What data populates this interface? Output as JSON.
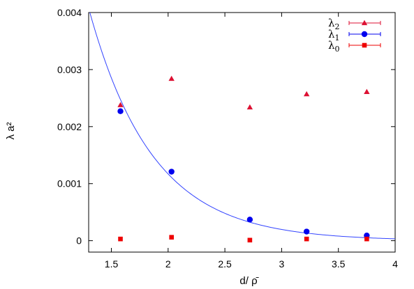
{
  "chart_data": {
    "type": "scatter",
    "title": "",
    "xlabel": "d/ ρ̄",
    "ylabel": "λ a²",
    "xlim": [
      1.3,
      4.0
    ],
    "ylim": [
      -0.0002,
      0.004
    ],
    "xticks": [
      1.5,
      2,
      2.5,
      3,
      3.5,
      4
    ],
    "xtick_labels": [
      "1.5",
      "2",
      "2.5",
      "3",
      "3.5",
      "4"
    ],
    "yticks": [
      0,
      0.001,
      0.002,
      0.003,
      0.004
    ],
    "ytick_labels": [
      "0",
      "0.001",
      "0.002",
      "0.003",
      "0.004"
    ],
    "grid": false,
    "legend_position": "top-right",
    "series": [
      {
        "name": "λ2",
        "marker": "triangle",
        "color": "#dd1133",
        "x": [
          1.58,
          2.03,
          2.72,
          3.22,
          3.75
        ],
        "y": [
          0.00238,
          0.00284,
          0.00234,
          0.00257,
          0.00261
        ]
      },
      {
        "name": "λ1",
        "marker": "circle",
        "color": "#0000ee",
        "x": [
          1.58,
          2.03,
          2.72,
          3.22,
          3.75
        ],
        "y": [
          0.00227,
          0.00121,
          0.00037,
          0.00016,
          9e-05
        ]
      },
      {
        "name": "λ0",
        "marker": "square",
        "color": "#ee0000",
        "x": [
          1.58,
          2.03,
          2.72,
          3.22,
          3.75
        ],
        "y": [
          3e-05,
          6e-05,
          1e-05,
          3e-05,
          3e-05
        ]
      }
    ],
    "fit_curve": {
      "color": "#3344ff",
      "type": "exponential",
      "x_range": [
        1.3,
        4.0
      ],
      "A": 0.0004,
      "x0": 2.602,
      "k": 1.783
    }
  }
}
